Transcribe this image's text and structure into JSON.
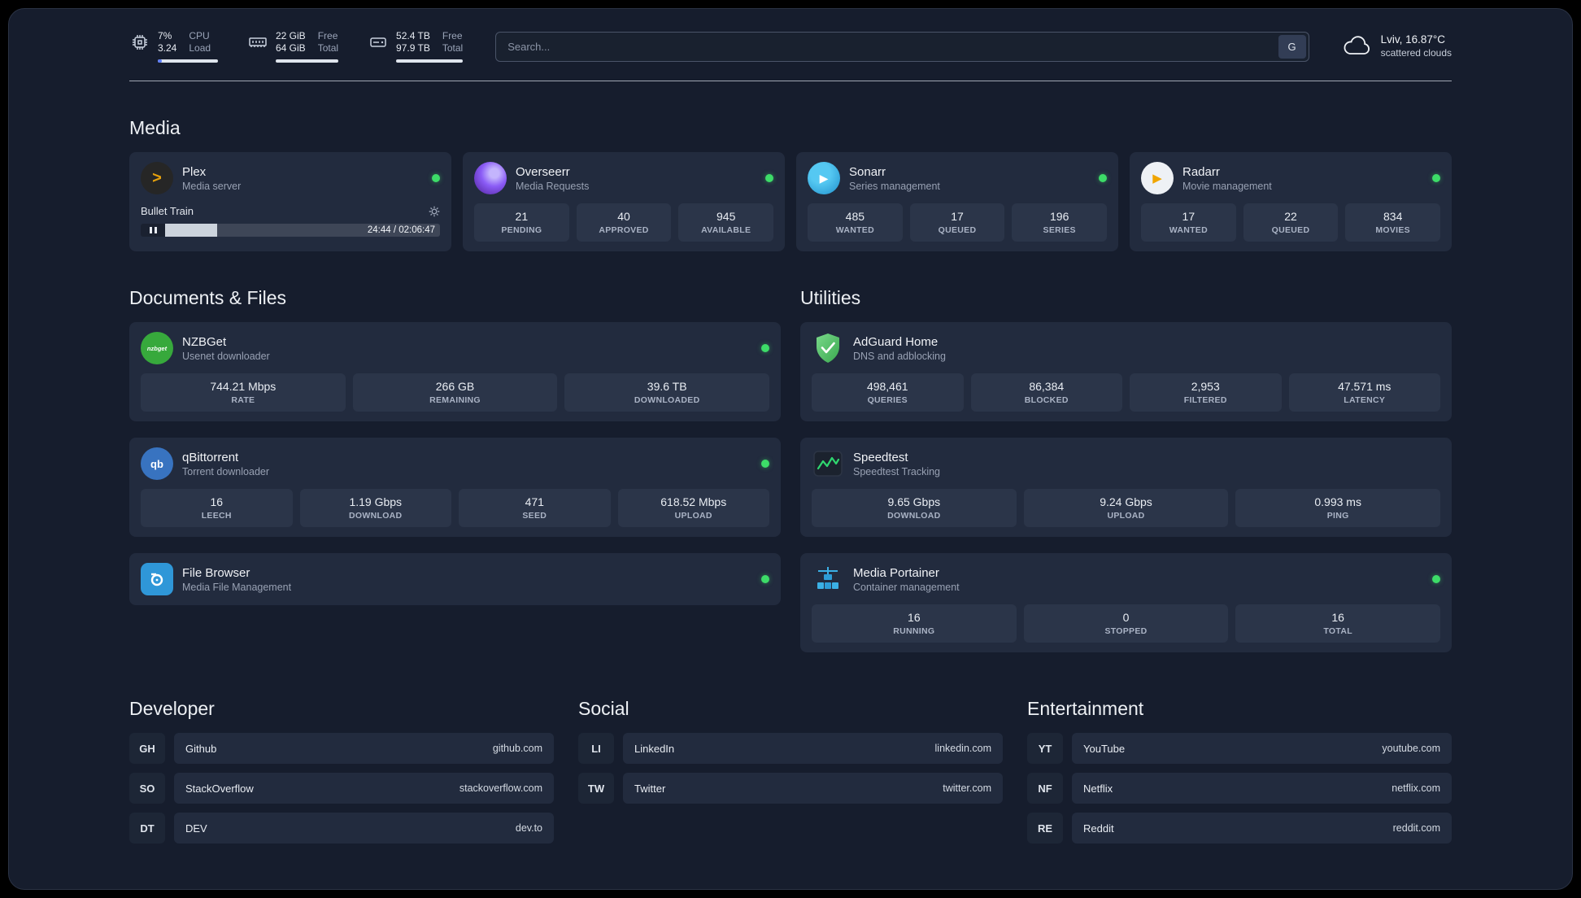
{
  "colors": {
    "status_online": "#3ddc68",
    "cpu_bar_fill": "#5c7cfa",
    "page_bg": "#161d2d",
    "card_bg": "#222b3e"
  },
  "topbar": {
    "cpu": {
      "value_top": "7%",
      "value_bottom": "3.24",
      "label_top": "CPU",
      "label_bottom": "Load",
      "progress": 7
    },
    "ram": {
      "value_top": "22 GiB",
      "value_bottom": "64 GiB",
      "label_top": "Free",
      "label_bottom": "Total"
    },
    "disk": {
      "value_top": "52.4 TB",
      "value_bottom": "97.9 TB",
      "label_top": "Free",
      "label_bottom": "Total"
    },
    "search": {
      "placeholder": "Search...",
      "button_label": "G"
    },
    "weather": {
      "location": "Lviv, 16.87°C",
      "condition": "scattered clouds"
    }
  },
  "media": {
    "title": "Media",
    "cards": [
      {
        "name": "Plex",
        "desc": "Media server",
        "online": true,
        "player": {
          "title": "Bullet Train",
          "time": "24:44 / 02:06:47",
          "progress": 19
        }
      },
      {
        "name": "Overseerr",
        "desc": "Media Requests",
        "online": true,
        "stats": [
          {
            "value": "21",
            "label": "PENDING"
          },
          {
            "value": "40",
            "label": "APPROVED"
          },
          {
            "value": "945",
            "label": "AVAILABLE"
          }
        ]
      },
      {
        "name": "Sonarr",
        "desc": "Series management",
        "online": true,
        "stats": [
          {
            "value": "485",
            "label": "WANTED"
          },
          {
            "value": "17",
            "label": "QUEUED"
          },
          {
            "value": "196",
            "label": "SERIES"
          }
        ]
      },
      {
        "name": "Radarr",
        "desc": "Movie management",
        "online": true,
        "stats": [
          {
            "value": "17",
            "label": "WANTED"
          },
          {
            "value": "22",
            "label": "QUEUED"
          },
          {
            "value": "834",
            "label": "MOVIES"
          }
        ]
      }
    ]
  },
  "docs": {
    "title": "Documents & Files",
    "cards": [
      {
        "name": "NZBGet",
        "desc": "Usenet downloader",
        "online": true,
        "icon_text": "nzbget",
        "stats": [
          {
            "value": "744.21 Mbps",
            "label": "RATE"
          },
          {
            "value": "266 GB",
            "label": "REMAINING"
          },
          {
            "value": "39.6 TB",
            "label": "DOWNLOADED"
          }
        ]
      },
      {
        "name": "qBittorrent",
        "desc": "Torrent downloader",
        "online": true,
        "icon_text": "qb",
        "stats": [
          {
            "value": "16",
            "label": "LEECH"
          },
          {
            "value": "1.19 Gbps",
            "label": "DOWNLOAD"
          },
          {
            "value": "471",
            "label": "SEED"
          },
          {
            "value": "618.52 Mbps",
            "label": "UPLOAD"
          }
        ]
      },
      {
        "name": "File Browser",
        "desc": "Media File Management",
        "online": true
      }
    ]
  },
  "utils": {
    "title": "Utilities",
    "cards": [
      {
        "name": "AdGuard Home",
        "desc": "DNS and adblocking",
        "stats": [
          {
            "value": "498,461",
            "label": "QUERIES"
          },
          {
            "value": "86,384",
            "label": "BLOCKED"
          },
          {
            "value": "2,953",
            "label": "FILTERED"
          },
          {
            "value": "47.571 ms",
            "label": "LATENCY"
          }
        ]
      },
      {
        "name": "Speedtest",
        "desc": "Speedtest Tracking",
        "stats": [
          {
            "value": "9.65 Gbps",
            "label": "DOWNLOAD"
          },
          {
            "value": "9.24 Gbps",
            "label": "UPLOAD"
          },
          {
            "value": "0.993 ms",
            "label": "PING"
          }
        ]
      },
      {
        "name": "Media Portainer",
        "desc": "Container management",
        "online": true,
        "stats": [
          {
            "value": "16",
            "label": "RUNNING"
          },
          {
            "value": "0",
            "label": "STOPPED"
          },
          {
            "value": "16",
            "label": "TOTAL"
          }
        ]
      }
    ]
  },
  "bookmarks": {
    "developer": {
      "title": "Developer",
      "items": [
        {
          "abbr": "GH",
          "name": "Github",
          "url": "github.com"
        },
        {
          "abbr": "SO",
          "name": "StackOverflow",
          "url": "stackoverflow.com"
        },
        {
          "abbr": "DT",
          "name": "DEV",
          "url": "dev.to"
        }
      ]
    },
    "social": {
      "title": "Social",
      "items": [
        {
          "abbr": "LI",
          "name": "LinkedIn",
          "url": "linkedin.com"
        },
        {
          "abbr": "TW",
          "name": "Twitter",
          "url": "twitter.com"
        }
      ]
    },
    "entertainment": {
      "title": "Entertainment",
      "items": [
        {
          "abbr": "YT",
          "name": "YouTube",
          "url": "youtube.com"
        },
        {
          "abbr": "NF",
          "name": "Netflix",
          "url": "netflix.com"
        },
        {
          "abbr": "RE",
          "name": "Reddit",
          "url": "reddit.com"
        }
      ]
    }
  }
}
